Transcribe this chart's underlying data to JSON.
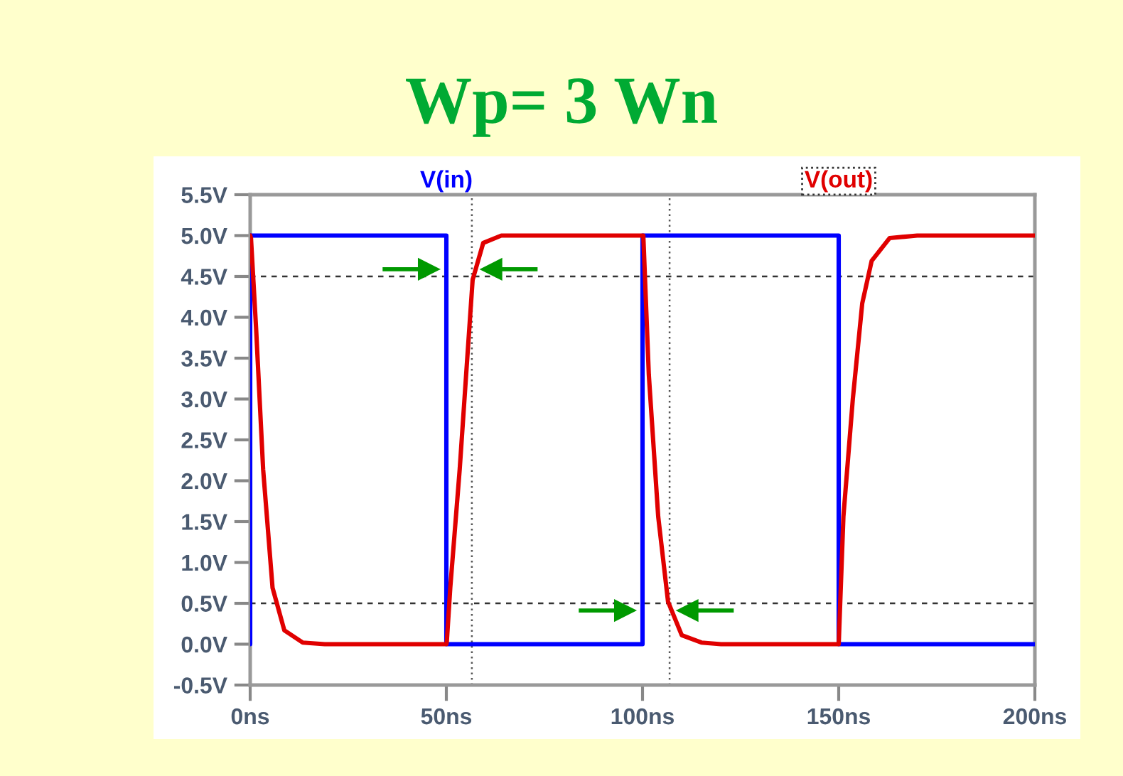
{
  "chart_data": {
    "type": "line",
    "title": "Wp= 3 Wn",
    "legend": "top",
    "grid": false,
    "line_style": "solid",
    "marker": "none",
    "series": [
      {
        "name": "V(in)",
        "color": "#0000ff",
        "x": [
          0,
          0,
          50,
          50,
          100,
          100,
          150,
          150,
          200
        ],
        "values": [
          0,
          5,
          5,
          0,
          0,
          5,
          5,
          0,
          0
        ]
      },
      {
        "name": "V(out)",
        "color": "#e00000",
        "x": [
          0,
          0.2,
          1.5,
          3.3,
          5.7,
          8.7,
          13.4,
          19,
          50,
          50.1,
          51,
          53.4,
          55.2,
          56.7,
          59.4,
          64,
          72,
          100,
          100.2,
          101.6,
          104,
          106.5,
          110,
          115,
          120,
          150,
          151.2,
          153.6,
          156,
          158.4,
          163,
          170,
          200
        ],
        "values": [
          5,
          4.97,
          3.87,
          2.14,
          0.69,
          0.17,
          0.02,
          0,
          0,
          0.02,
          0.69,
          2.14,
          3.41,
          4.46,
          4.91,
          5,
          5,
          5,
          5,
          3.3,
          1.56,
          0.52,
          0.11,
          0.02,
          0,
          0,
          1.56,
          3.0,
          4.17,
          4.69,
          4.97,
          5,
          5
        ]
      }
    ],
    "xlim": [
      0,
      200
    ],
    "ylim": [
      -0.5,
      5.5
    ],
    "xticks": [
      {
        "value": 0,
        "label": "0ns"
      },
      {
        "value": 50,
        "label": "50ns"
      },
      {
        "value": 100,
        "label": "100ns"
      },
      {
        "value": 150,
        "label": "150ns"
      },
      {
        "value": 200,
        "label": "200ns"
      }
    ],
    "yticks": [
      {
        "value": -0.5,
        "label": "-0.5V"
      },
      {
        "value": 0,
        "label": "0.0V"
      },
      {
        "value": 0.5,
        "label": "0.5V"
      },
      {
        "value": 1,
        "label": "1.0V"
      },
      {
        "value": 1.5,
        "label": "1.5V"
      },
      {
        "value": 2,
        "label": "2.0V"
      },
      {
        "value": 2.5,
        "label": "2.5V"
      },
      {
        "value": 3,
        "label": "3.0V"
      },
      {
        "value": 3.5,
        "label": "3.5V"
      },
      {
        "value": 4,
        "label": "4.0V"
      },
      {
        "value": 4.5,
        "label": "4.5V"
      },
      {
        "value": 5,
        "label": "5.0V"
      },
      {
        "value": 5.5,
        "label": "5.5V"
      }
    ],
    "ref_lines": [
      {
        "axis": "y",
        "value": 4.5,
        "color": "#333333",
        "line_style": "dashed"
      },
      {
        "axis": "y",
        "value": 0.5,
        "color": "#333333",
        "line_style": "dashed"
      },
      {
        "axis": "x",
        "value": 56.5,
        "color": "#555555",
        "line_style": "dotted"
      },
      {
        "axis": "x",
        "value": 106.9,
        "color": "#555555",
        "line_style": "dotted"
      }
    ]
  }
}
